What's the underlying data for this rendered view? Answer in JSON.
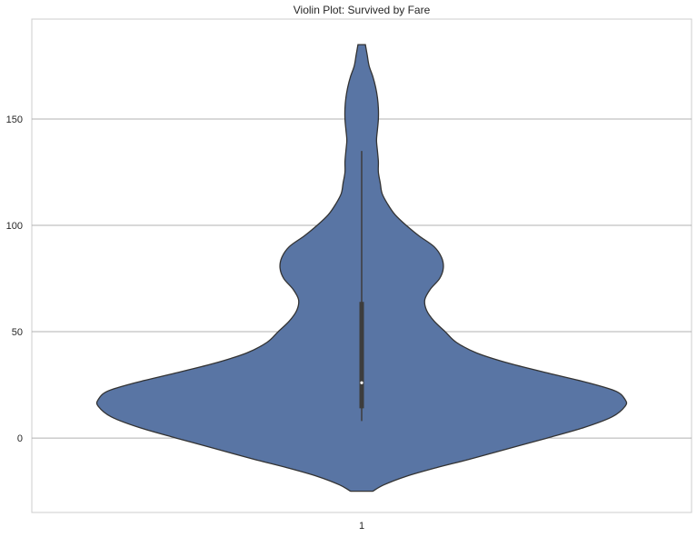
{
  "chart_data": {
    "type": "violin",
    "title": "Violin Plot: Survived by Fare",
    "xlabel": "",
    "ylabel": "",
    "categories": [
      "1"
    ],
    "ylim": [
      -35,
      197
    ],
    "yticks": [
      0,
      50,
      100,
      150
    ],
    "grid": true,
    "fill_color": "#5975a4",
    "edge_color": "#333333",
    "violin": {
      "min": -25,
      "max": 185,
      "density": [
        [
          -25,
          0.06
        ],
        [
          -22,
          0.12
        ],
        [
          -18,
          0.24
        ],
        [
          -14,
          0.4
        ],
        [
          -10,
          0.58
        ],
        [
          -5,
          0.79
        ],
        [
          0,
          1.0
        ],
        [
          5,
          1.2
        ],
        [
          10,
          1.35
        ],
        [
          15,
          1.42
        ],
        [
          18,
          1.42
        ],
        [
          22,
          1.37
        ],
        [
          26,
          1.22
        ],
        [
          30,
          1.03
        ],
        [
          35,
          0.8
        ],
        [
          40,
          0.62
        ],
        [
          45,
          0.51
        ],
        [
          50,
          0.45
        ],
        [
          55,
          0.39
        ],
        [
          60,
          0.35
        ],
        [
          65,
          0.34
        ],
        [
          70,
          0.37
        ],
        [
          75,
          0.42
        ],
        [
          80,
          0.44
        ],
        [
          85,
          0.43
        ],
        [
          90,
          0.39
        ],
        [
          95,
          0.31
        ],
        [
          100,
          0.24
        ],
        [
          105,
          0.18
        ],
        [
          110,
          0.14
        ],
        [
          115,
          0.11
        ],
        [
          120,
          0.1
        ],
        [
          125,
          0.09
        ],
        [
          130,
          0.09
        ],
        [
          135,
          0.085
        ],
        [
          140,
          0.08
        ],
        [
          145,
          0.085
        ],
        [
          150,
          0.09
        ],
        [
          155,
          0.09
        ],
        [
          160,
          0.085
        ],
        [
          165,
          0.075
        ],
        [
          170,
          0.06
        ],
        [
          175,
          0.04
        ],
        [
          180,
          0.03
        ],
        [
          185,
          0.02
        ]
      ],
      "whisker": [
        8,
        135
      ],
      "quartiles": [
        14,
        64
      ],
      "median": 26
    }
  }
}
